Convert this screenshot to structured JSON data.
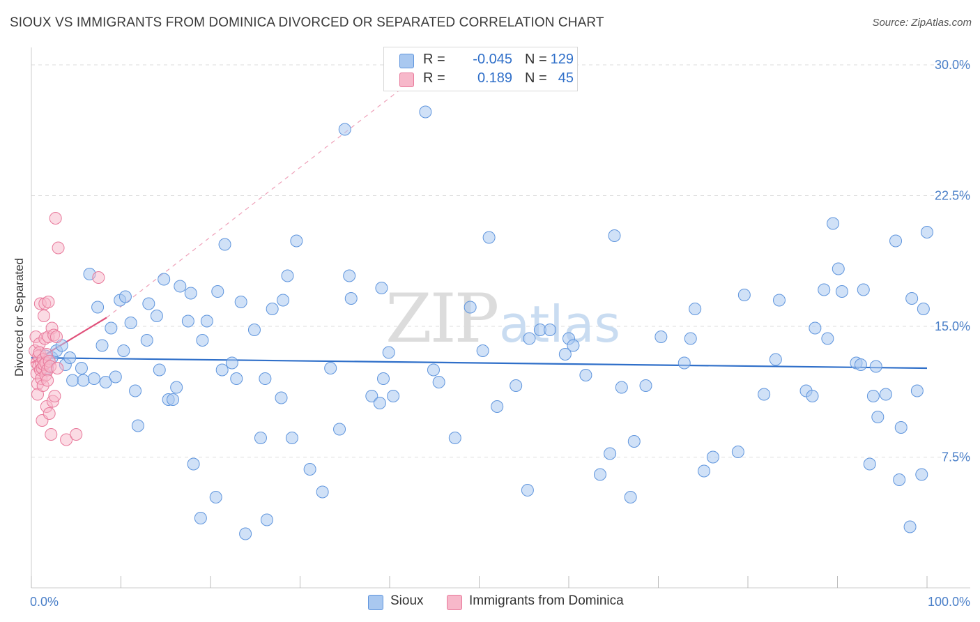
{
  "title": "SIOUX VS IMMIGRANTS FROM DOMINICA DIVORCED OR SEPARATED CORRELATION CHART",
  "source": "Source: ZipAtlas.com",
  "watermark": {
    "zip": "ZIP",
    "atlas": "atlas"
  },
  "legend": {
    "rows": [
      {
        "r_label": "R =",
        "r_value": "-0.045",
        "n_label": "N =",
        "n_value": "129"
      },
      {
        "r_label": "R =",
        "r_value": "0.189",
        "n_label": "N =",
        "n_value": "45"
      }
    ]
  },
  "bottom_legend": [
    "Sioux",
    "Immigrants from Dominica"
  ],
  "colors": {
    "sioux_fill": "#a9c8f0",
    "sioux_stroke": "#5f95dd",
    "sioux_line": "#2f6fc9",
    "dominica_fill": "#f7b8ca",
    "dominica_stroke": "#e8799b",
    "dominica_line": "#e0507a",
    "tick_text": "#4a7fc8",
    "grid": "#dddddd"
  },
  "chart_data": {
    "type": "scatter",
    "title": "SIOUX VS IMMIGRANTS FROM DOMINICA DIVORCED OR SEPARATED CORRELATION CHART",
    "xlabel": "",
    "ylabel": "Divorced or Separated",
    "xlim": [
      0,
      100
    ],
    "ylim": [
      0,
      31
    ],
    "x_tick_labels": [
      "0.0%",
      "100.0%"
    ],
    "y_ticks": [
      7.5,
      15.0,
      22.5,
      30.0
    ],
    "y_tick_labels": [
      "7.5%",
      "15.0%",
      "22.5%",
      "30.0%"
    ],
    "series": [
      {
        "name": "Sioux",
        "R": -0.045,
        "N": 129,
        "trend": {
          "x": [
            0,
            100
          ],
          "y": [
            13.2,
            12.6
          ]
        },
        "points": [
          [
            1.6,
            13.3
          ],
          [
            1.8,
            12.6
          ],
          [
            2.3,
            13.2
          ],
          [
            2.8,
            13.6
          ],
          [
            3.4,
            13.9
          ],
          [
            3.8,
            12.8
          ],
          [
            4.3,
            13.2
          ],
          [
            4.6,
            11.9
          ],
          [
            5.6,
            12.6
          ],
          [
            5.8,
            11.9
          ],
          [
            6.5,
            18.0
          ],
          [
            7.0,
            12.0
          ],
          [
            7.4,
            16.1
          ],
          [
            7.9,
            13.9
          ],
          [
            8.3,
            11.8
          ],
          [
            8.9,
            14.9
          ],
          [
            9.4,
            12.1
          ],
          [
            9.9,
            16.5
          ],
          [
            10.3,
            13.6
          ],
          [
            10.5,
            16.7
          ],
          [
            11.1,
            15.2
          ],
          [
            11.6,
            11.3
          ],
          [
            11.9,
            9.3
          ],
          [
            12.9,
            14.2
          ],
          [
            13.1,
            16.3
          ],
          [
            14.0,
            15.6
          ],
          [
            14.3,
            12.5
          ],
          [
            14.8,
            17.7
          ],
          [
            15.3,
            10.8
          ],
          [
            15.8,
            10.8
          ],
          [
            16.2,
            11.5
          ],
          [
            16.6,
            17.3
          ],
          [
            17.5,
            15.3
          ],
          [
            17.8,
            16.9
          ],
          [
            18.1,
            7.1
          ],
          [
            18.9,
            4.0
          ],
          [
            19.1,
            14.2
          ],
          [
            19.6,
            15.3
          ],
          [
            20.6,
            5.2
          ],
          [
            20.8,
            17.0
          ],
          [
            21.3,
            12.5
          ],
          [
            21.6,
            19.7
          ],
          [
            22.4,
            12.9
          ],
          [
            22.9,
            12.0
          ],
          [
            23.4,
            16.4
          ],
          [
            23.9,
            3.1
          ],
          [
            24.9,
            14.8
          ],
          [
            25.6,
            8.6
          ],
          [
            26.1,
            12.0
          ],
          [
            26.3,
            3.9
          ],
          [
            26.9,
            16.0
          ],
          [
            27.9,
            10.9
          ],
          [
            28.1,
            16.5
          ],
          [
            28.6,
            17.9
          ],
          [
            29.1,
            8.6
          ],
          [
            29.6,
            19.9
          ],
          [
            31.1,
            6.8
          ],
          [
            32.5,
            5.5
          ],
          [
            33.4,
            12.6
          ],
          [
            34.4,
            9.1
          ],
          [
            35.0,
            26.3
          ],
          [
            35.5,
            17.9
          ],
          [
            35.7,
            16.6
          ],
          [
            38.0,
            11.0
          ],
          [
            38.9,
            10.6
          ],
          [
            39.1,
            17.2
          ],
          [
            39.3,
            12.0
          ],
          [
            39.9,
            13.5
          ],
          [
            40.4,
            11.0
          ],
          [
            44.0,
            27.3
          ],
          [
            44.9,
            12.5
          ],
          [
            45.5,
            11.8
          ],
          [
            47.3,
            8.6
          ],
          [
            49.0,
            16.1
          ],
          [
            50.4,
            13.6
          ],
          [
            51.1,
            20.1
          ],
          [
            52.0,
            10.4
          ],
          [
            54.1,
            11.6
          ],
          [
            55.4,
            5.6
          ],
          [
            55.6,
            14.3
          ],
          [
            56.8,
            14.8
          ],
          [
            57.9,
            14.8
          ],
          [
            59.6,
            13.4
          ],
          [
            60.0,
            14.3
          ],
          [
            61.9,
            12.2
          ],
          [
            63.5,
            6.5
          ],
          [
            64.6,
            7.7
          ],
          [
            65.1,
            20.2
          ],
          [
            65.9,
            11.5
          ],
          [
            66.9,
            5.2
          ],
          [
            67.3,
            8.4
          ],
          [
            68.6,
            11.6
          ],
          [
            70.3,
            14.4
          ],
          [
            72.9,
            12.9
          ],
          [
            73.6,
            14.3
          ],
          [
            74.1,
            16.0
          ],
          [
            75.1,
            6.7
          ],
          [
            76.1,
            7.5
          ],
          [
            78.9,
            7.8
          ],
          [
            79.6,
            16.8
          ],
          [
            81.8,
            11.1
          ],
          [
            83.1,
            13.1
          ],
          [
            83.5,
            16.5
          ],
          [
            86.5,
            11.3
          ],
          [
            87.5,
            14.9
          ],
          [
            88.5,
            17.1
          ],
          [
            88.9,
            14.3
          ],
          [
            89.5,
            20.9
          ],
          [
            90.1,
            18.3
          ],
          [
            90.5,
            17.0
          ],
          [
            92.1,
            12.9
          ],
          [
            92.6,
            12.8
          ],
          [
            92.9,
            17.1
          ],
          [
            93.6,
            7.1
          ],
          [
            94.0,
            11.0
          ],
          [
            94.3,
            12.7
          ],
          [
            94.5,
            9.8
          ],
          [
            95.4,
            11.1
          ],
          [
            96.5,
            19.9
          ],
          [
            96.9,
            6.2
          ],
          [
            97.1,
            9.2
          ],
          [
            98.1,
            3.5
          ],
          [
            98.3,
            16.6
          ],
          [
            98.9,
            11.3
          ],
          [
            99.4,
            6.5
          ],
          [
            99.6,
            16.0
          ],
          [
            100.0,
            20.4
          ],
          [
            87.2,
            11.0
          ],
          [
            60.5,
            13.9
          ]
        ]
      },
      {
        "name": "Immigrants from Dominica",
        "R": 0.189,
        "N": 45,
        "trend": {
          "x": [
            0,
            8.4
          ],
          "y": [
            12.9,
            15.5
          ]
        },
        "trend_extension": {
          "x": [
            8.4,
            46
          ],
          "y": [
            15.5,
            30.5
          ]
        },
        "points": [
          [
            0.4,
            13.6
          ],
          [
            0.5,
            14.4
          ],
          [
            0.6,
            12.3
          ],
          [
            0.6,
            12.9
          ],
          [
            0.7,
            11.7
          ],
          [
            0.7,
            11.1
          ],
          [
            0.8,
            12.7
          ],
          [
            0.8,
            13.3
          ],
          [
            0.9,
            14.0
          ],
          [
            0.9,
            13.5
          ],
          [
            1.0,
            12.5
          ],
          [
            1.0,
            16.3
          ],
          [
            1.1,
            12.0
          ],
          [
            1.1,
            12.9
          ],
          [
            1.2,
            12.6
          ],
          [
            1.2,
            9.6
          ],
          [
            1.3,
            13.1
          ],
          [
            1.3,
            11.6
          ],
          [
            1.4,
            15.6
          ],
          [
            1.4,
            12.8
          ],
          [
            1.5,
            14.3
          ],
          [
            1.5,
            16.3
          ],
          [
            1.6,
            12.2
          ],
          [
            1.6,
            12.9
          ],
          [
            1.7,
            13.4
          ],
          [
            1.7,
            10.4
          ],
          [
            1.8,
            12.5
          ],
          [
            1.8,
            11.9
          ],
          [
            1.9,
            14.4
          ],
          [
            1.9,
            16.4
          ],
          [
            2.0,
            10.0
          ],
          [
            2.0,
            13.0
          ],
          [
            2.1,
            12.7
          ],
          [
            2.2,
            8.8
          ],
          [
            2.3,
            14.9
          ],
          [
            2.4,
            10.7
          ],
          [
            2.5,
            14.5
          ],
          [
            2.6,
            11.0
          ],
          [
            2.8,
            14.4
          ],
          [
            2.9,
            12.6
          ],
          [
            2.7,
            21.2
          ],
          [
            3.0,
            19.5
          ],
          [
            3.9,
            8.5
          ],
          [
            5.0,
            8.8
          ],
          [
            7.5,
            17.8
          ]
        ]
      }
    ]
  }
}
